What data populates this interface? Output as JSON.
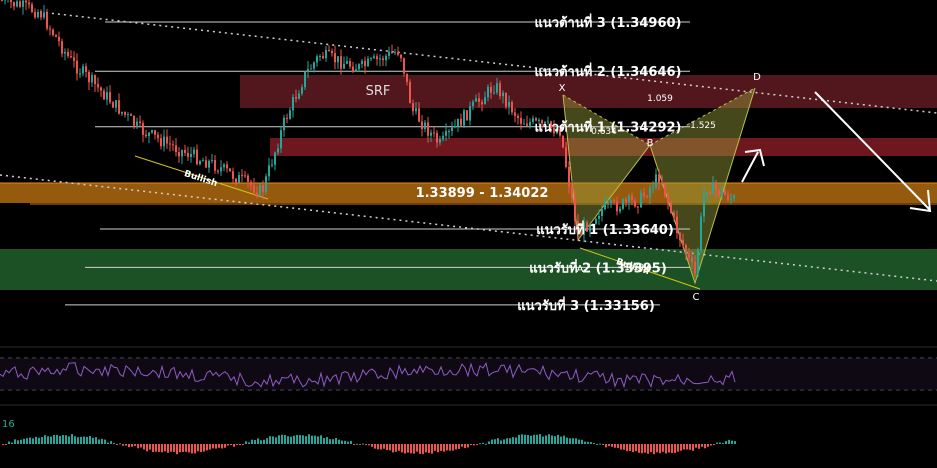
{
  "chart_data": {
    "type": "candlestick",
    "price_ylim": [
      1.329,
      1.351
    ],
    "resistance_levels": [
      {
        "label": "แนวต้านที่ 3 (1.34960)",
        "price": 1.3496
      },
      {
        "label": "แนวต้านที่ 2 (1.34646)",
        "price": 1.34646
      },
      {
        "label": "แนวต้านที่ 1 (1.34292)",
        "price": 1.34292
      }
    ],
    "support_levels": [
      {
        "label": "แนวรับที่ 1 (1.33640)",
        "price": 1.3364
      },
      {
        "label": "แนวรับที่ 2 (1.33395)",
        "price": 1.33395
      },
      {
        "label": "แนวรับที่ 3 (1.33156)",
        "price": 1.33156
      }
    ],
    "zones": [
      {
        "label": "SRF",
        "color": "#5a1a1f"
      },
      {
        "label": "",
        "color": "#7a1a22"
      },
      {
        "label": "1.33899 - 1.34022",
        "color": "#b06a10"
      },
      {
        "label": "",
        "color": "#1e5a28"
      }
    ],
    "harmonic_pattern": {
      "points": [
        "X",
        "A",
        "B",
        "C",
        "D"
      ],
      "ratios": [
        "0.634",
        "1.059",
        "1.525",
        "1.197"
      ]
    },
    "trendline_labels": [
      "Bullish",
      "Bullish"
    ],
    "oscillator_label": "16",
    "colors": {
      "up": "#26a69a",
      "down": "#ef5350",
      "support": "#2e7d32",
      "resistance": "#8e1b24",
      "zone_mid": "#c07a12",
      "pattern": "#9aa03a",
      "rsi": "#8e5cc4"
    }
  }
}
